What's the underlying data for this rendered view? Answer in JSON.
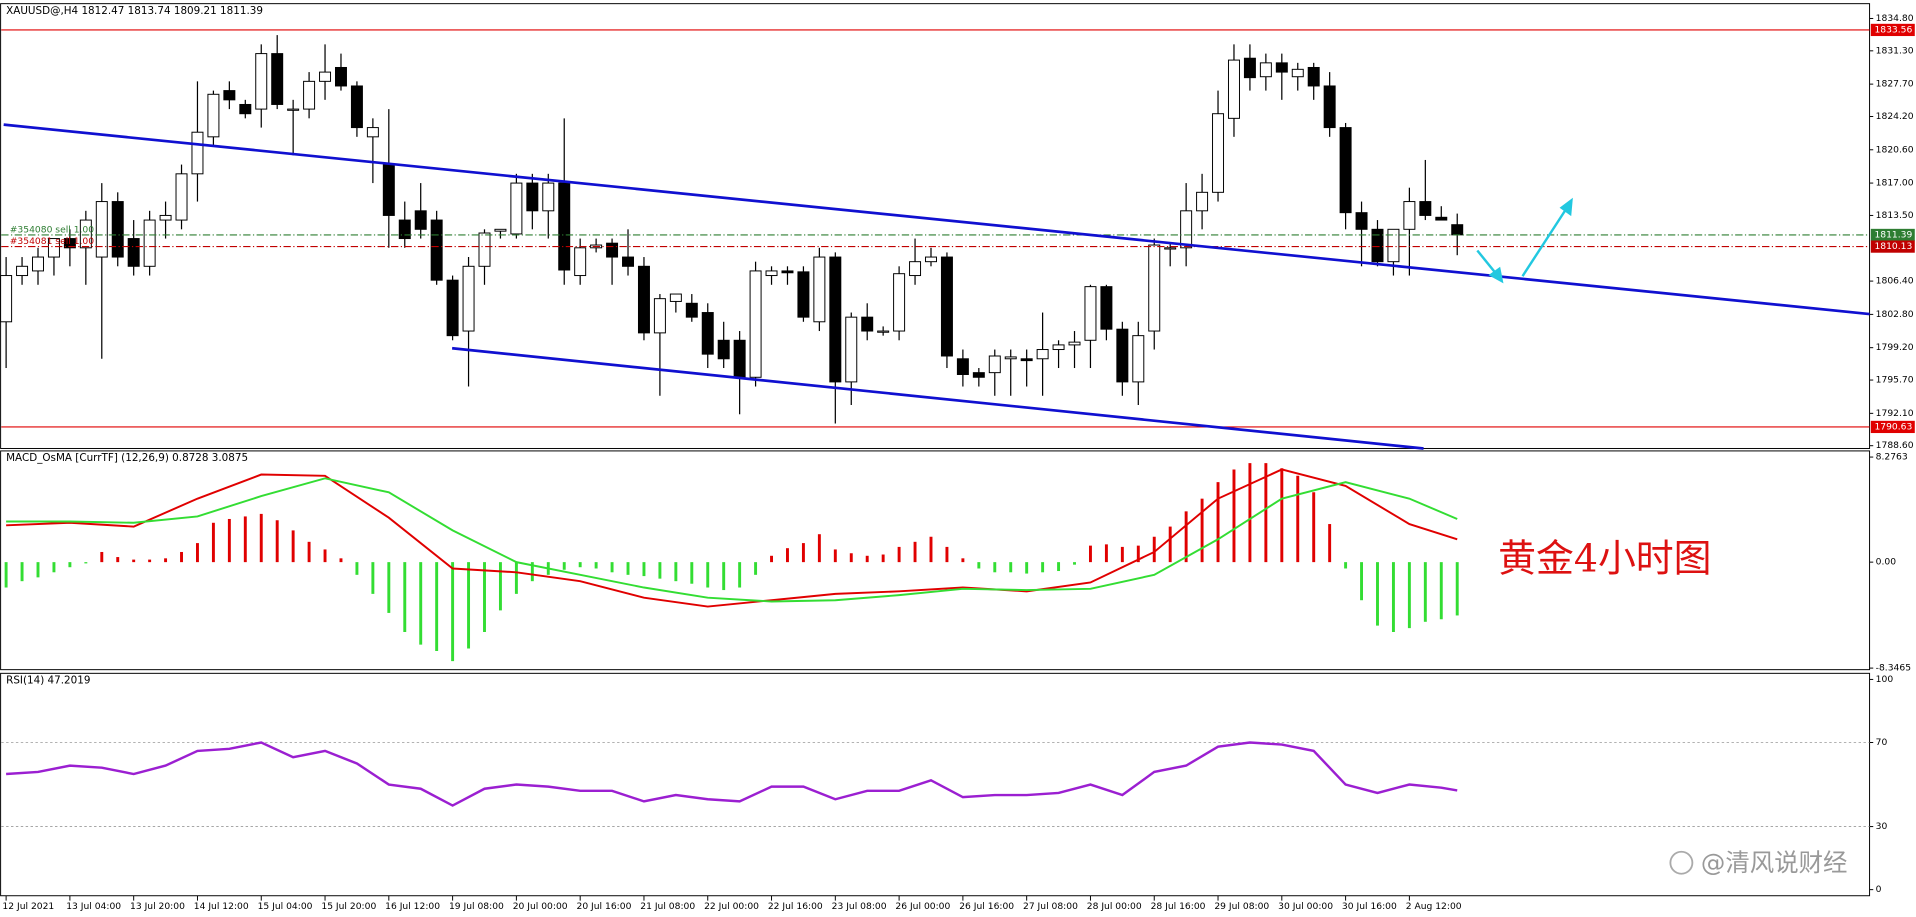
{
  "chart_data": [
    {
      "type": "candlestick",
      "title": "XAUUSD@,H4  1812.47 1813.74 1809.21 1811.39",
      "categories": [
        "12 Jul 2021",
        null,
        null,
        null,
        "13 Jul 04:00",
        null,
        null,
        null,
        "13 Jul 20:00",
        null,
        null,
        null,
        "14 Jul 12:00",
        null,
        null,
        null,
        "15 Jul 04:00",
        null,
        null,
        null,
        "15 Jul 20:00",
        null,
        null,
        null,
        "16 Jul 12:00",
        null,
        null,
        null,
        "19 Jul 08:00",
        null,
        null,
        null,
        "20 Jul 00:00",
        null,
        null,
        null,
        "20 Jul 16:00",
        null,
        null,
        null,
        "21 Jul 08:00",
        null,
        null,
        null,
        "22 Jul 00:00",
        null,
        null,
        null,
        "22 Jul 16:00",
        null,
        null,
        null,
        "23 Jul 08:00",
        null,
        null,
        null,
        "26 Jul 00:00",
        null,
        null,
        null,
        "26 Jul 16:00",
        null,
        null,
        null,
        "27 Jul 08:00",
        null,
        null,
        null,
        "28 Jul 00:00",
        null,
        null,
        null,
        "28 Jul 16:00",
        null,
        null,
        null,
        "29 Jul 08:00",
        null,
        null,
        null,
        "30 Jul 00:00",
        null,
        null,
        null,
        "30 Jul 16:00",
        null,
        null,
        null,
        "2 Aug 12:00",
        null,
        null,
        null
      ],
      "open": [
        1802,
        1807,
        1807.5,
        1809,
        1811,
        1810,
        1809,
        1815,
        1811,
        1808,
        1813,
        1813,
        1818,
        1822,
        1827,
        1825.5,
        1825,
        1831,
        1825,
        1825,
        1828,
        1829.5,
        1827.5,
        1822,
        1819,
        1813,
        1814,
        1813,
        1806.5,
        1801,
        1808,
        1811.8,
        1811.5,
        1817,
        1814,
        1817,
        1807,
        1810,
        1810.5,
        1809,
        1808,
        1800.8,
        1804.2,
        1804,
        1803,
        1800,
        1800,
        1796,
        1807,
        1807.5,
        1807.4,
        1802,
        1809,
        1795.5,
        1802.5,
        1801,
        1801,
        1807,
        1808.5,
        1809,
        1798,
        1796.5,
        1796.5,
        1798,
        1798,
        1798,
        1799,
        1799.5,
        1800,
        1805.8,
        1801.2,
        1795.5,
        1801,
        1810,
        1810,
        1814,
        1816,
        1824,
        1830.5,
        1828.5,
        1830,
        1828.5,
        1829.5,
        1827.5,
        1823,
        1813.8,
        1812,
        1808.5,
        1812,
        1815,
        1813.3,
        1812.5
      ],
      "high": [
        1809,
        1809,
        1810,
        1811,
        1812,
        1814,
        1817,
        1816,
        1813,
        1814,
        1815,
        1819,
        1828,
        1827,
        1828,
        1826,
        1832,
        1833,
        1826,
        1829,
        1832,
        1831,
        1828,
        1824,
        1825,
        1815,
        1817,
        1814,
        1807,
        1809,
        1812,
        1812,
        1818,
        1818,
        1818,
        1824,
        1811,
        1811,
        1811,
        1812,
        1809,
        1805,
        1805,
        1805,
        1804,
        1802,
        1801,
        1808.5,
        1808,
        1808,
        1808,
        1810,
        1809.5,
        1803,
        1804,
        1801.5,
        1808,
        1811,
        1810,
        1809.5,
        1799,
        1797,
        1799,
        1799,
        1799,
        1803,
        1800,
        1801,
        1806,
        1806,
        1802,
        1802,
        1811,
        1810.5,
        1817,
        1818,
        1827,
        1832,
        1832,
        1831,
        1831,
        1830,
        1830,
        1829,
        1823.5,
        1815,
        1813,
        1812,
        1816.5,
        1819.5,
        1814.5,
        1813.7
      ],
      "low": [
        1797,
        1806,
        1806,
        1807,
        1808,
        1806,
        1798,
        1808,
        1807,
        1807,
        1811,
        1812,
        1815,
        1821,
        1825,
        1824,
        1823,
        1825,
        1820,
        1824,
        1826,
        1827,
        1822,
        1817,
        1810,
        1810,
        1811,
        1806,
        1800,
        1795,
        1806,
        1811,
        1811,
        1812,
        1811,
        1806,
        1806,
        1809.5,
        1806,
        1807,
        1800,
        1794,
        1803,
        1802,
        1797,
        1797,
        1792,
        1795,
        1806,
        1806,
        1802,
        1801,
        1791,
        1793,
        1800,
        1800.5,
        1800,
        1806,
        1808,
        1797,
        1795,
        1795,
        1794,
        1794,
        1795,
        1794,
        1797,
        1797,
        1797,
        1800,
        1794,
        1793,
        1799,
        1808,
        1808,
        1812,
        1815,
        1822,
        1827,
        1827,
        1826,
        1827,
        1826,
        1822,
        1812,
        1808,
        1808,
        1807,
        1807,
        1813,
        1813,
        1809.2
      ],
      "close": [
        1807,
        1808,
        1809,
        1811,
        1810,
        1813,
        1815,
        1809,
        1808,
        1813,
        1813.5,
        1818,
        1822.5,
        1826.6,
        1826,
        1824.5,
        1831,
        1825.5,
        1825,
        1828,
        1829,
        1827.5,
        1823,
        1823,
        1813.5,
        1811,
        1812,
        1806.5,
        1800.5,
        1808,
        1811.6,
        1812,
        1817,
        1814,
        1817,
        1807.6,
        1810,
        1810.3,
        1809,
        1808,
        1800.8,
        1804.5,
        1805,
        1802.5,
        1798.5,
        1798,
        1796,
        1807.5,
        1807.5,
        1807.3,
        1802.5,
        1809,
        1795.5,
        1802.5,
        1801,
        1801,
        1807.2,
        1808.5,
        1809,
        1798.3,
        1796.3,
        1796,
        1798.3,
        1798.2,
        1797.8,
        1799,
        1799.5,
        1799.8,
        1805.8,
        1801.2,
        1795.5,
        1800.5,
        1810.3,
        1810,
        1814,
        1816,
        1824.5,
        1830.3,
        1828.4,
        1830,
        1829,
        1829.3,
        1827.5,
        1823,
        1813.8,
        1812,
        1808.5,
        1812,
        1815,
        1813.5,
        1813,
        1811.4
      ],
      "up_color": "#ffffff",
      "down_color": "#000000",
      "ylim": [
        1788.3,
        1836.4
      ],
      "yticks": [
        {
          "value": 1834.8,
          "label": "1834.80"
        },
        {
          "value": 1831.3,
          "label": "1831.30"
        },
        {
          "value": 1827.7,
          "label": "1827.70"
        },
        {
          "value": 1824.2,
          "label": "1824.20"
        },
        {
          "value": 1820.6,
          "label": "1820.60"
        },
        {
          "value": 1817,
          "label": "1817.00"
        },
        {
          "value": 1813.5,
          "label": "1813.50"
        },
        {
          "value": 1806.4,
          "label": "1806.40"
        },
        {
          "value": 1802.8,
          "label": "1802.80"
        },
        {
          "value": 1799.2,
          "label": "1799.20"
        },
        {
          "value": 1795.7,
          "label": "1795.70"
        },
        {
          "value": 1792.1,
          "label": "1792.10"
        },
        {
          "value": 1788.6,
          "label": "1788.60"
        }
      ],
      "levels": [
        {
          "value": 1833.56,
          "color": "#e00000"
        },
        {
          "value": 1811.39,
          "color": "#2e7d32",
          "label": "#354080 sell 1.00"
        },
        {
          "value": 1810.13,
          "color": "#c00000",
          "label": "#354081 sell 1.00"
        },
        {
          "value": 1790.63,
          "color": "#e00000"
        }
      ]
    },
    {
      "type": "bar",
      "title": "MACD_OsMA [CurrTF] (12,26,9) 0.8728 3.0875",
      "values": [
        -2.0,
        -1.5,
        -1.2,
        -0.8,
        -0.4,
        -0.1,
        0.8,
        0.4,
        0.2,
        0.2,
        0.3,
        0.8,
        1.5,
        3.1,
        3.4,
        3.6,
        3.8,
        3.3,
        2.5,
        1.6,
        1.0,
        0.3,
        -1.0,
        -2.5,
        -4.0,
        -5.5,
        -6.5,
        -7.0,
        -7.8,
        -6.8,
        -5.5,
        -3.8,
        -2.5,
        -1.5,
        -1.0,
        -0.6,
        -0.4,
        -0.5,
        -0.8,
        -1.0,
        -1.1,
        -1.3,
        -1.5,
        -1.7,
        -2.0,
        -2.2,
        -2.0,
        -1.0,
        0.5,
        1.1,
        1.5,
        2.2,
        1.0,
        0.7,
        0.5,
        0.6,
        1.2,
        1.6,
        2.0,
        1.2,
        0.3,
        -0.5,
        -0.8,
        -0.8,
        -0.9,
        -0.8,
        -0.7,
        -0.2,
        1.3,
        1.4,
        1.2,
        1.3,
        2.0,
        2.8,
        4.0,
        5.0,
        6.3,
        7.3,
        7.8,
        7.8,
        7.4,
        6.8,
        5.5,
        3.0,
        -0.5,
        -3.0,
        -5.0,
        -5.5,
        -5.2,
        -4.7,
        -4.5,
        -4.2
      ],
      "up_color": "#e00000",
      "down_color": "#33dd33",
      "lines": [
        {
          "color": "#e00000",
          "x": [
            0,
            4,
            8,
            12,
            16,
            20,
            24,
            28,
            32,
            36,
            40,
            44,
            48,
            52,
            56,
            60,
            64,
            68,
            72,
            76,
            80,
            84,
            88,
            91
          ],
          "values": [
            2.9,
            3.1,
            2.8,
            5.0,
            6.9,
            6.8,
            3.5,
            -0.5,
            -0.8,
            -1.5,
            -2.8,
            -3.5,
            -3.0,
            -2.5,
            -2.3,
            -2.0,
            -2.3,
            -1.6,
            0.8,
            5.0,
            7.3,
            6.0,
            3.0,
            1.8
          ]
        },
        {
          "color": "#33dd33",
          "x": [
            0,
            4,
            8,
            12,
            16,
            20,
            24,
            28,
            32,
            36,
            40,
            44,
            48,
            52,
            56,
            60,
            64,
            68,
            72,
            76,
            80,
            84,
            88,
            91
          ],
          "values": [
            3.2,
            3.2,
            3.1,
            3.6,
            5.2,
            6.6,
            5.5,
            2.5,
            0.0,
            -1.0,
            -2.0,
            -2.8,
            -3.1,
            -3.0,
            -2.6,
            -2.1,
            -2.2,
            -2.1,
            -1.0,
            1.8,
            5.0,
            6.3,
            5.0,
            3.4
          ]
        }
      ],
      "ylim": [
        -8.47,
        8.76
      ],
      "yticks": [
        8.2763,
        {
          "value": 0,
          "label": "0.00"
        },
        -8.3465
      ]
    },
    {
      "type": "line",
      "title": "RSI(14) 47.2019",
      "x": [
        0,
        2,
        4,
        6,
        8,
        10,
        12,
        14,
        16,
        18,
        20,
        22,
        24,
        26,
        28,
        30,
        32,
        34,
        36,
        38,
        40,
        42,
        44,
        46,
        48,
        50,
        52,
        54,
        56,
        58,
        60,
        62,
        64,
        66,
        68,
        70,
        72,
        74,
        76,
        78,
        80,
        82,
        84,
        86,
        88,
        90,
        91
      ],
      "values": [
        55,
        56,
        59,
        58,
        55,
        59,
        66,
        67,
        70,
        63,
        66,
        60,
        50,
        48,
        40,
        48,
        50,
        49,
        47,
        47,
        42,
        45,
        43,
        42,
        49,
        49,
        43,
        47,
        47,
        52,
        44,
        45,
        45,
        46,
        50,
        45,
        56,
        59,
        68,
        70,
        69,
        66,
        50,
        46,
        50,
        48.5,
        47.2
      ],
      "color": "#9b1fd1",
      "ylim": [
        -2.9,
        102.9
      ],
      "yticks": [
        100,
        70,
        30,
        0
      ],
      "levels": [
        70,
        30
      ]
    }
  ],
  "caption": "黄金4小时图",
  "watermark": "@清风说财经"
}
